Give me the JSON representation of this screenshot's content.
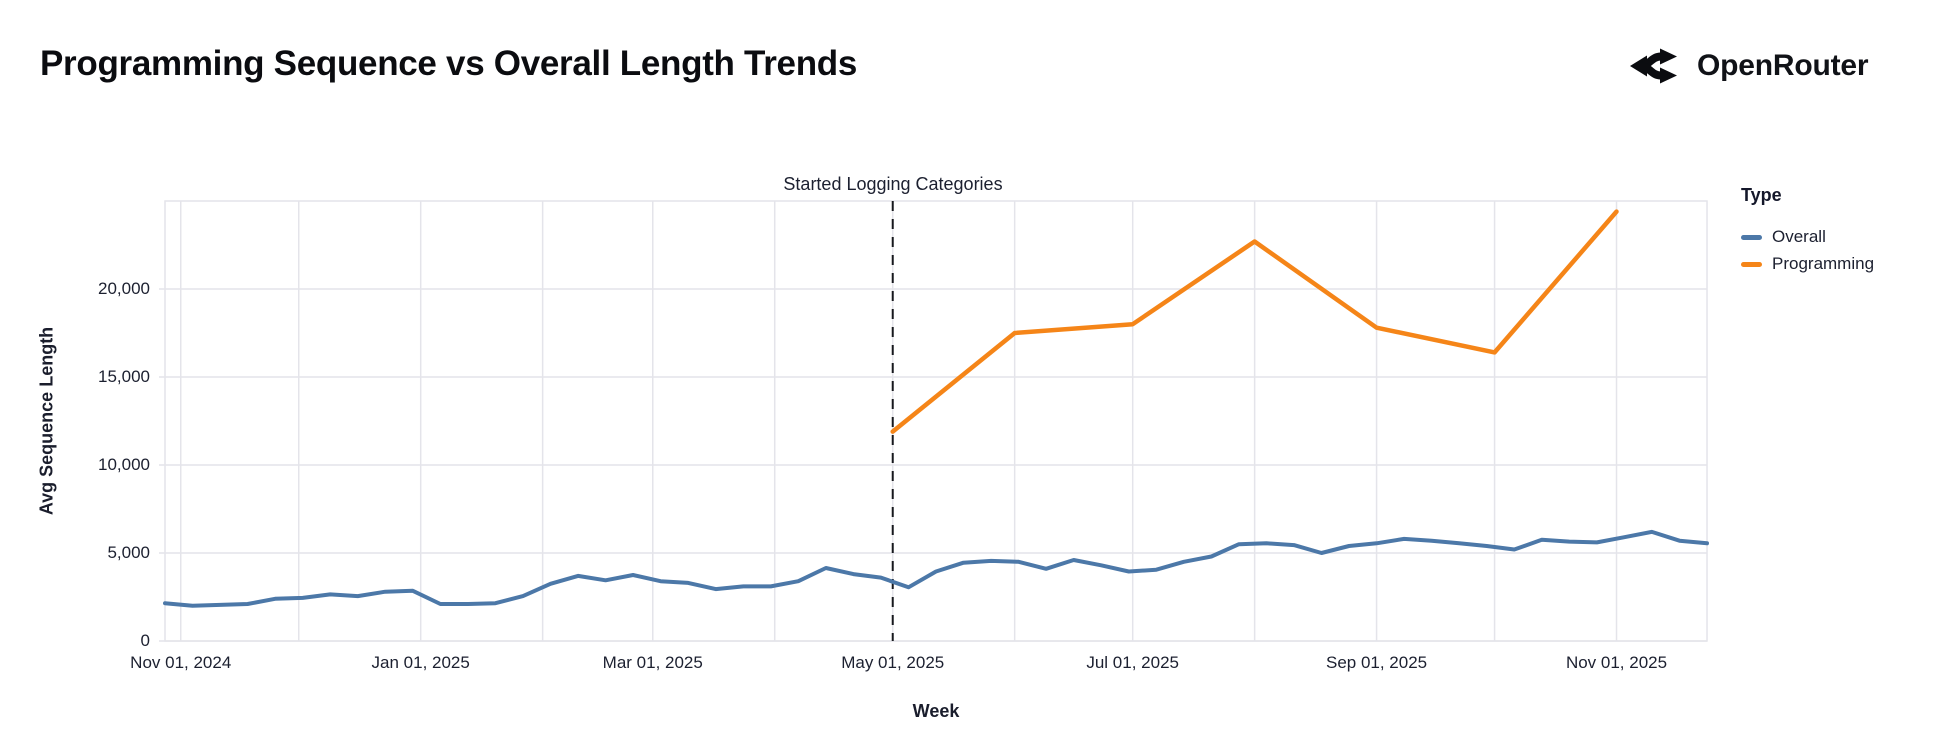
{
  "header": {
    "title": "Programming Sequence vs Overall Length Trends",
    "brand_name": "OpenRouter"
  },
  "legend": {
    "title": "Type",
    "items": [
      {
        "label": "Overall",
        "color": "#4c78a8"
      },
      {
        "label": "Programming",
        "color": "#f58518"
      }
    ]
  },
  "axes": {
    "x": {
      "title": "Week",
      "ticks": [
        {
          "date": "2024-11-01",
          "label": "Nov 01, 2024"
        },
        {
          "date": "2025-01-01",
          "label": "Jan 01, 2025"
        },
        {
          "date": "2025-03-01",
          "label": "Mar 01, 2025"
        },
        {
          "date": "2025-05-01",
          "label": "May 01, 2025"
        },
        {
          "date": "2025-07-01",
          "label": "Jul 01, 2025"
        },
        {
          "date": "2025-09-01",
          "label": "Sep 01, 2025"
        },
        {
          "date": "2025-11-01",
          "label": "Nov 01, 2025"
        }
      ],
      "gridline_dates": [
        "2024-11-01",
        "2024-12-01",
        "2025-01-01",
        "2025-02-01",
        "2025-03-01",
        "2025-04-01",
        "2025-05-01",
        "2025-06-01",
        "2025-07-01",
        "2025-08-01",
        "2025-09-01",
        "2025-10-01",
        "2025-11-01"
      ]
    },
    "y": {
      "title": "Avg Sequence Length",
      "ticks": [
        {
          "value": 0,
          "label": "0"
        },
        {
          "value": 5000,
          "label": "5,000"
        },
        {
          "value": 10000,
          "label": "10,000"
        },
        {
          "value": 15000,
          "label": "15,000"
        },
        {
          "value": 20000,
          "label": "20,000"
        }
      ]
    }
  },
  "chart_data": {
    "type": "line",
    "title": "Programming Sequence vs Overall Length Trends",
    "xlabel": "Week",
    "ylabel": "Avg Sequence Length",
    "x_range": [
      "2024-10-28",
      "2025-11-24"
    ],
    "ylim": [
      0,
      25000
    ],
    "grid": "monthly vertical gridlines, horizontal gridlines every 5000",
    "legend_position": "right",
    "annotation": {
      "text": "Started Logging Categories",
      "x": "2025-05-01",
      "style": "vertical-dashed-rule"
    },
    "series": [
      {
        "name": "Overall",
        "color": "#4c78a8",
        "x": [
          "2024-10-28",
          "2024-11-04",
          "2024-11-11",
          "2024-11-18",
          "2024-11-25",
          "2024-12-02",
          "2024-12-09",
          "2024-12-16",
          "2024-12-23",
          "2024-12-30",
          "2025-01-06",
          "2025-01-13",
          "2025-01-20",
          "2025-01-27",
          "2025-02-03",
          "2025-02-10",
          "2025-02-17",
          "2025-02-24",
          "2025-03-03",
          "2025-03-10",
          "2025-03-17",
          "2025-03-24",
          "2025-03-31",
          "2025-04-07",
          "2025-04-14",
          "2025-04-21",
          "2025-04-28",
          "2025-05-05",
          "2025-05-12",
          "2025-05-19",
          "2025-05-26",
          "2025-06-02",
          "2025-06-09",
          "2025-06-16",
          "2025-06-23",
          "2025-06-30",
          "2025-07-07",
          "2025-07-14",
          "2025-07-21",
          "2025-07-28",
          "2025-08-04",
          "2025-08-11",
          "2025-08-18",
          "2025-08-25",
          "2025-09-01",
          "2025-09-08",
          "2025-09-15",
          "2025-09-22",
          "2025-09-29",
          "2025-10-06",
          "2025-10-13",
          "2025-10-20",
          "2025-10-27",
          "2025-11-03",
          "2025-11-10",
          "2025-11-17",
          "2025-11-24"
        ],
        "values": [
          2150,
          2000,
          2050,
          2100,
          2400,
          2450,
          2650,
          2550,
          2800,
          2850,
          2100,
          2100,
          2150,
          2550,
          3250,
          3700,
          3450,
          3750,
          3400,
          3300,
          2950,
          3100,
          3100,
          3400,
          4150,
          3800,
          3600,
          3050,
          3950,
          4450,
          4550,
          4500,
          4100,
          4600,
          4300,
          3950,
          4050,
          4500,
          4800,
          5500,
          5550,
          5450,
          5000,
          5400,
          5550,
          5800,
          5700,
          5550,
          5400,
          5200,
          5750,
          5650,
          5600,
          5900,
          6200,
          5700,
          5550
        ]
      },
      {
        "name": "Programming",
        "color": "#f58518",
        "x": [
          "2025-05-01",
          "2025-06-01",
          "2025-07-01",
          "2025-08-01",
          "2025-09-01",
          "2025-10-01",
          "2025-11-01"
        ],
        "values": [
          11900,
          17500,
          18000,
          22700,
          17800,
          16400,
          24400
        ]
      }
    ]
  },
  "colors": {
    "background": "#ffffff",
    "grid": "#e4e4ea",
    "rule": "#16181d",
    "text": "#1c2030"
  }
}
